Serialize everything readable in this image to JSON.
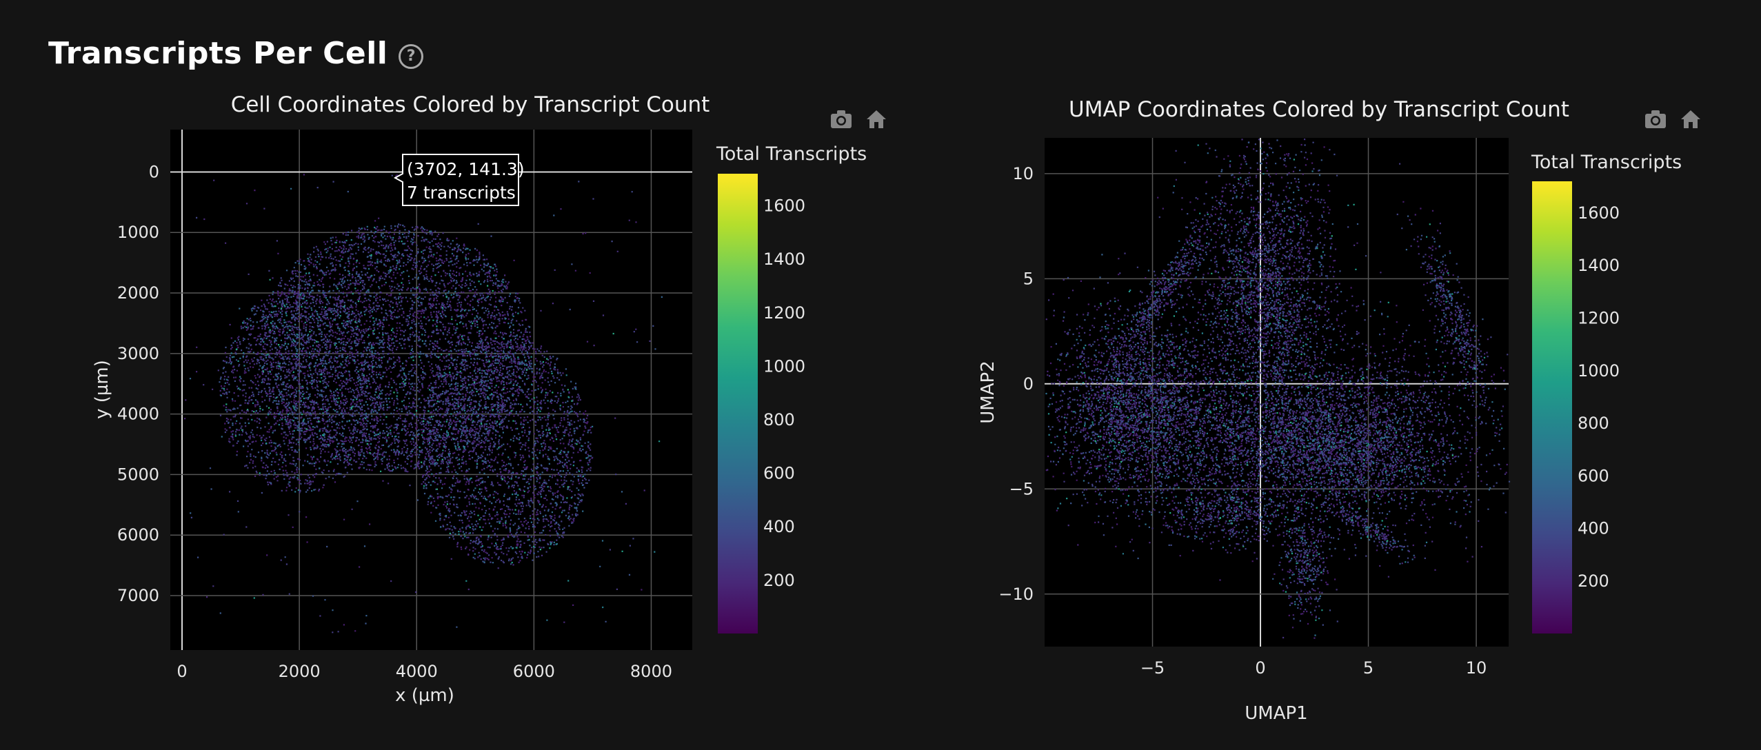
{
  "page": {
    "title": "Transcripts Per Cell",
    "help_icon": "question-circle-icon"
  },
  "colors": {
    "background": "#141414",
    "plot_background": "#000000",
    "gridline": "#555555",
    "zeroline": "#d9d9d9",
    "text": "#e6e6e6",
    "colormap": "viridis"
  },
  "modebar": {
    "icons": [
      "camera-icon",
      "home-icon"
    ]
  },
  "tooltip": {
    "line1": "(3702, 141.3)",
    "line2": "7 transcripts"
  },
  "chart_data": [
    {
      "type": "scatter",
      "title": "Cell Coordinates Colored by Transcript Count",
      "xlabel": "x (µm)",
      "ylabel": "y (µm)",
      "xlim": [
        -200,
        8700
      ],
      "ylim": [
        7900,
        -700
      ],
      "y_reversed": true,
      "xticks": [
        0,
        2000,
        4000,
        6000,
        8000
      ],
      "yticks": [
        0,
        1000,
        2000,
        3000,
        4000,
        5000,
        6000,
        7000
      ],
      "grid": true,
      "colorbar": {
        "title": "Total Transcripts",
        "range": [
          1,
          1720
        ],
        "ticks": [
          200,
          400,
          600,
          800,
          1000,
          1200,
          1400,
          1600
        ]
      },
      "highlighted_point": {
        "x": 3702,
        "y": 141.3,
        "value": 7
      }
    },
    {
      "type": "scatter",
      "title": "UMAP Coordinates Colored by Transcript Count",
      "xlabel": "UMAP1",
      "ylabel": "UMAP2",
      "xlim": [
        -10,
        11.5
      ],
      "ylim": [
        -12.5,
        11.7
      ],
      "xticks": [
        -5,
        0,
        5,
        10
      ],
      "yticks": [
        -10,
        -5,
        0,
        5,
        10
      ],
      "grid": true,
      "colorbar": {
        "title": "Total Transcripts",
        "range": [
          1,
          1720
        ],
        "ticks": [
          200,
          400,
          600,
          800,
          1000,
          1200,
          1400,
          1600
        ]
      }
    }
  ]
}
